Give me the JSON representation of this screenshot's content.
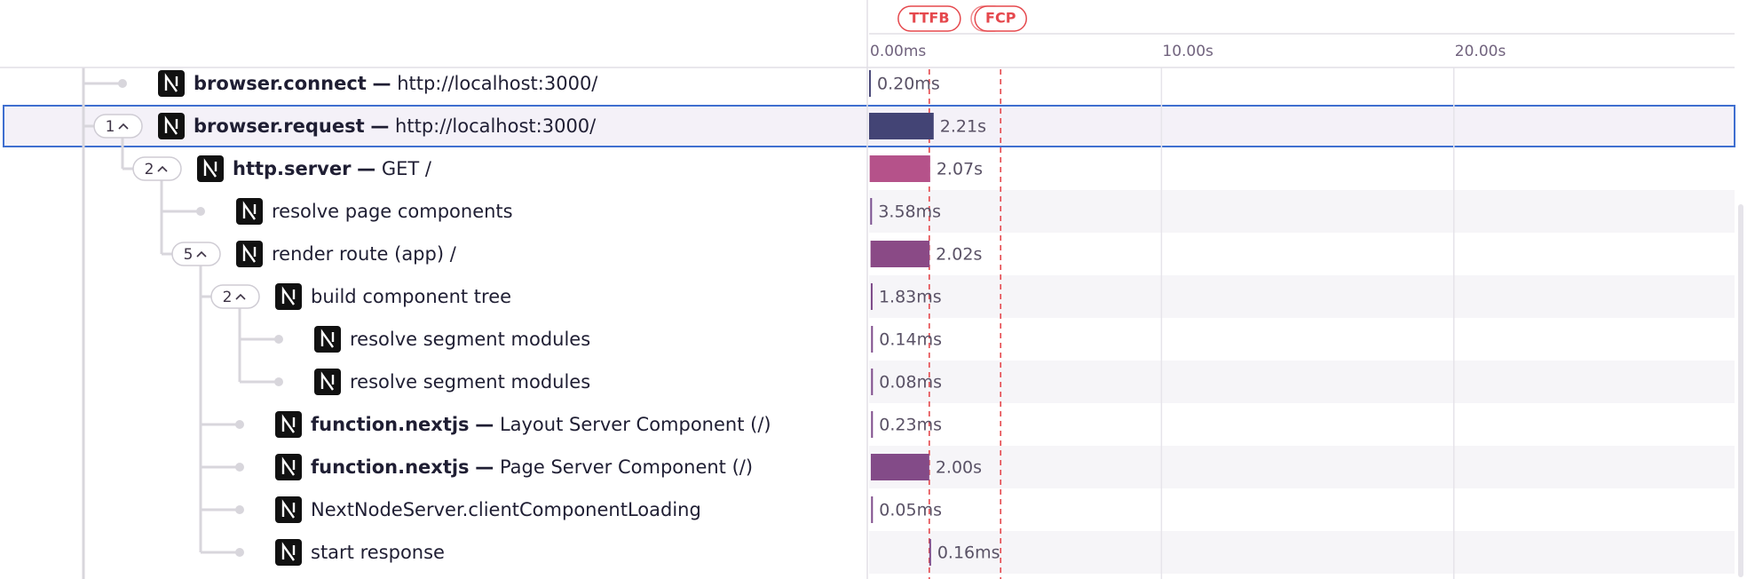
{
  "trace": {
    "separator": "—",
    "timeline": {
      "xlim": [
        0,
        29.6
      ],
      "xticks": [
        {
          "value": 0,
          "label": "0.00ms"
        },
        {
          "value": 10,
          "label": "10.00s"
        },
        {
          "value": 20,
          "label": "20.00s"
        }
      ]
    },
    "markers": [
      {
        "label": "TTFB",
        "time": 2.06,
        "color": "#e5484d"
      },
      {
        "label": "FCP",
        "time": 4.5,
        "color": "#e5484d"
      }
    ],
    "spans": [
      {
        "op": "browser.connect",
        "description": "http://localhost:3000/",
        "start": 0,
        "duration": 0.0002,
        "duration_label": "0.20ms",
        "color": "#4b4a7a"
      },
      {
        "op": "browser.request",
        "description": "http://localhost:3000/",
        "start": 0,
        "duration": 2.21,
        "duration_label": "2.21s",
        "color": "#434475",
        "selected": true,
        "child_count": 1,
        "children": [
          {
            "op": "http.server",
            "description": "GET /",
            "start": 0.02,
            "duration": 2.07,
            "duration_label": "2.07s",
            "color": "#b5528a",
            "child_count": 2,
            "children": [
              {
                "description": "resolve page components",
                "start": 0.04,
                "duration": 0.00358,
                "duration_label": "3.58ms",
                "color": "#7a4f8f"
              },
              {
                "description": "render route (app) /",
                "start": 0.05,
                "duration": 2.02,
                "duration_label": "2.02s",
                "color": "#8a4a86",
                "child_count": 5,
                "children": [
                  {
                    "description": "build component tree",
                    "start": 0.06,
                    "duration": 0.00183,
                    "duration_label": "1.83ms",
                    "color": "#7e4b8a",
                    "child_count": 2,
                    "children": [
                      {
                        "description": "resolve segment modules",
                        "start": 0.07,
                        "duration": 0.00014,
                        "duration_label": "0.14ms",
                        "color": "#7e4b8a"
                      },
                      {
                        "description": "resolve segment modules",
                        "start": 0.07,
                        "duration": 8e-05,
                        "duration_label": "0.08ms",
                        "color": "#7e4b8a"
                      }
                    ]
                  },
                  {
                    "op": "function.nextjs",
                    "description": "Layout Server Component (/)",
                    "start": 0.07,
                    "duration": 0.00023,
                    "duration_label": "0.23ms",
                    "color": "#7e4b8a"
                  },
                  {
                    "op": "function.nextjs",
                    "description": "Page Server Component (/)",
                    "start": 0.06,
                    "duration": 2.0,
                    "duration_label": "2.00s",
                    "color": "#834b88"
                  },
                  {
                    "description": "NextNodeServer.clientComponentLoading",
                    "start": 0.07,
                    "duration": 5e-05,
                    "duration_label": "0.05ms",
                    "color": "#7e4b8a"
                  },
                  {
                    "description": "start response",
                    "start": 2.06,
                    "duration": 0.00016,
                    "duration_label": "0.16ms",
                    "color": "#7e4b8a"
                  }
                ]
              }
            ]
          }
        ]
      }
    ]
  }
}
